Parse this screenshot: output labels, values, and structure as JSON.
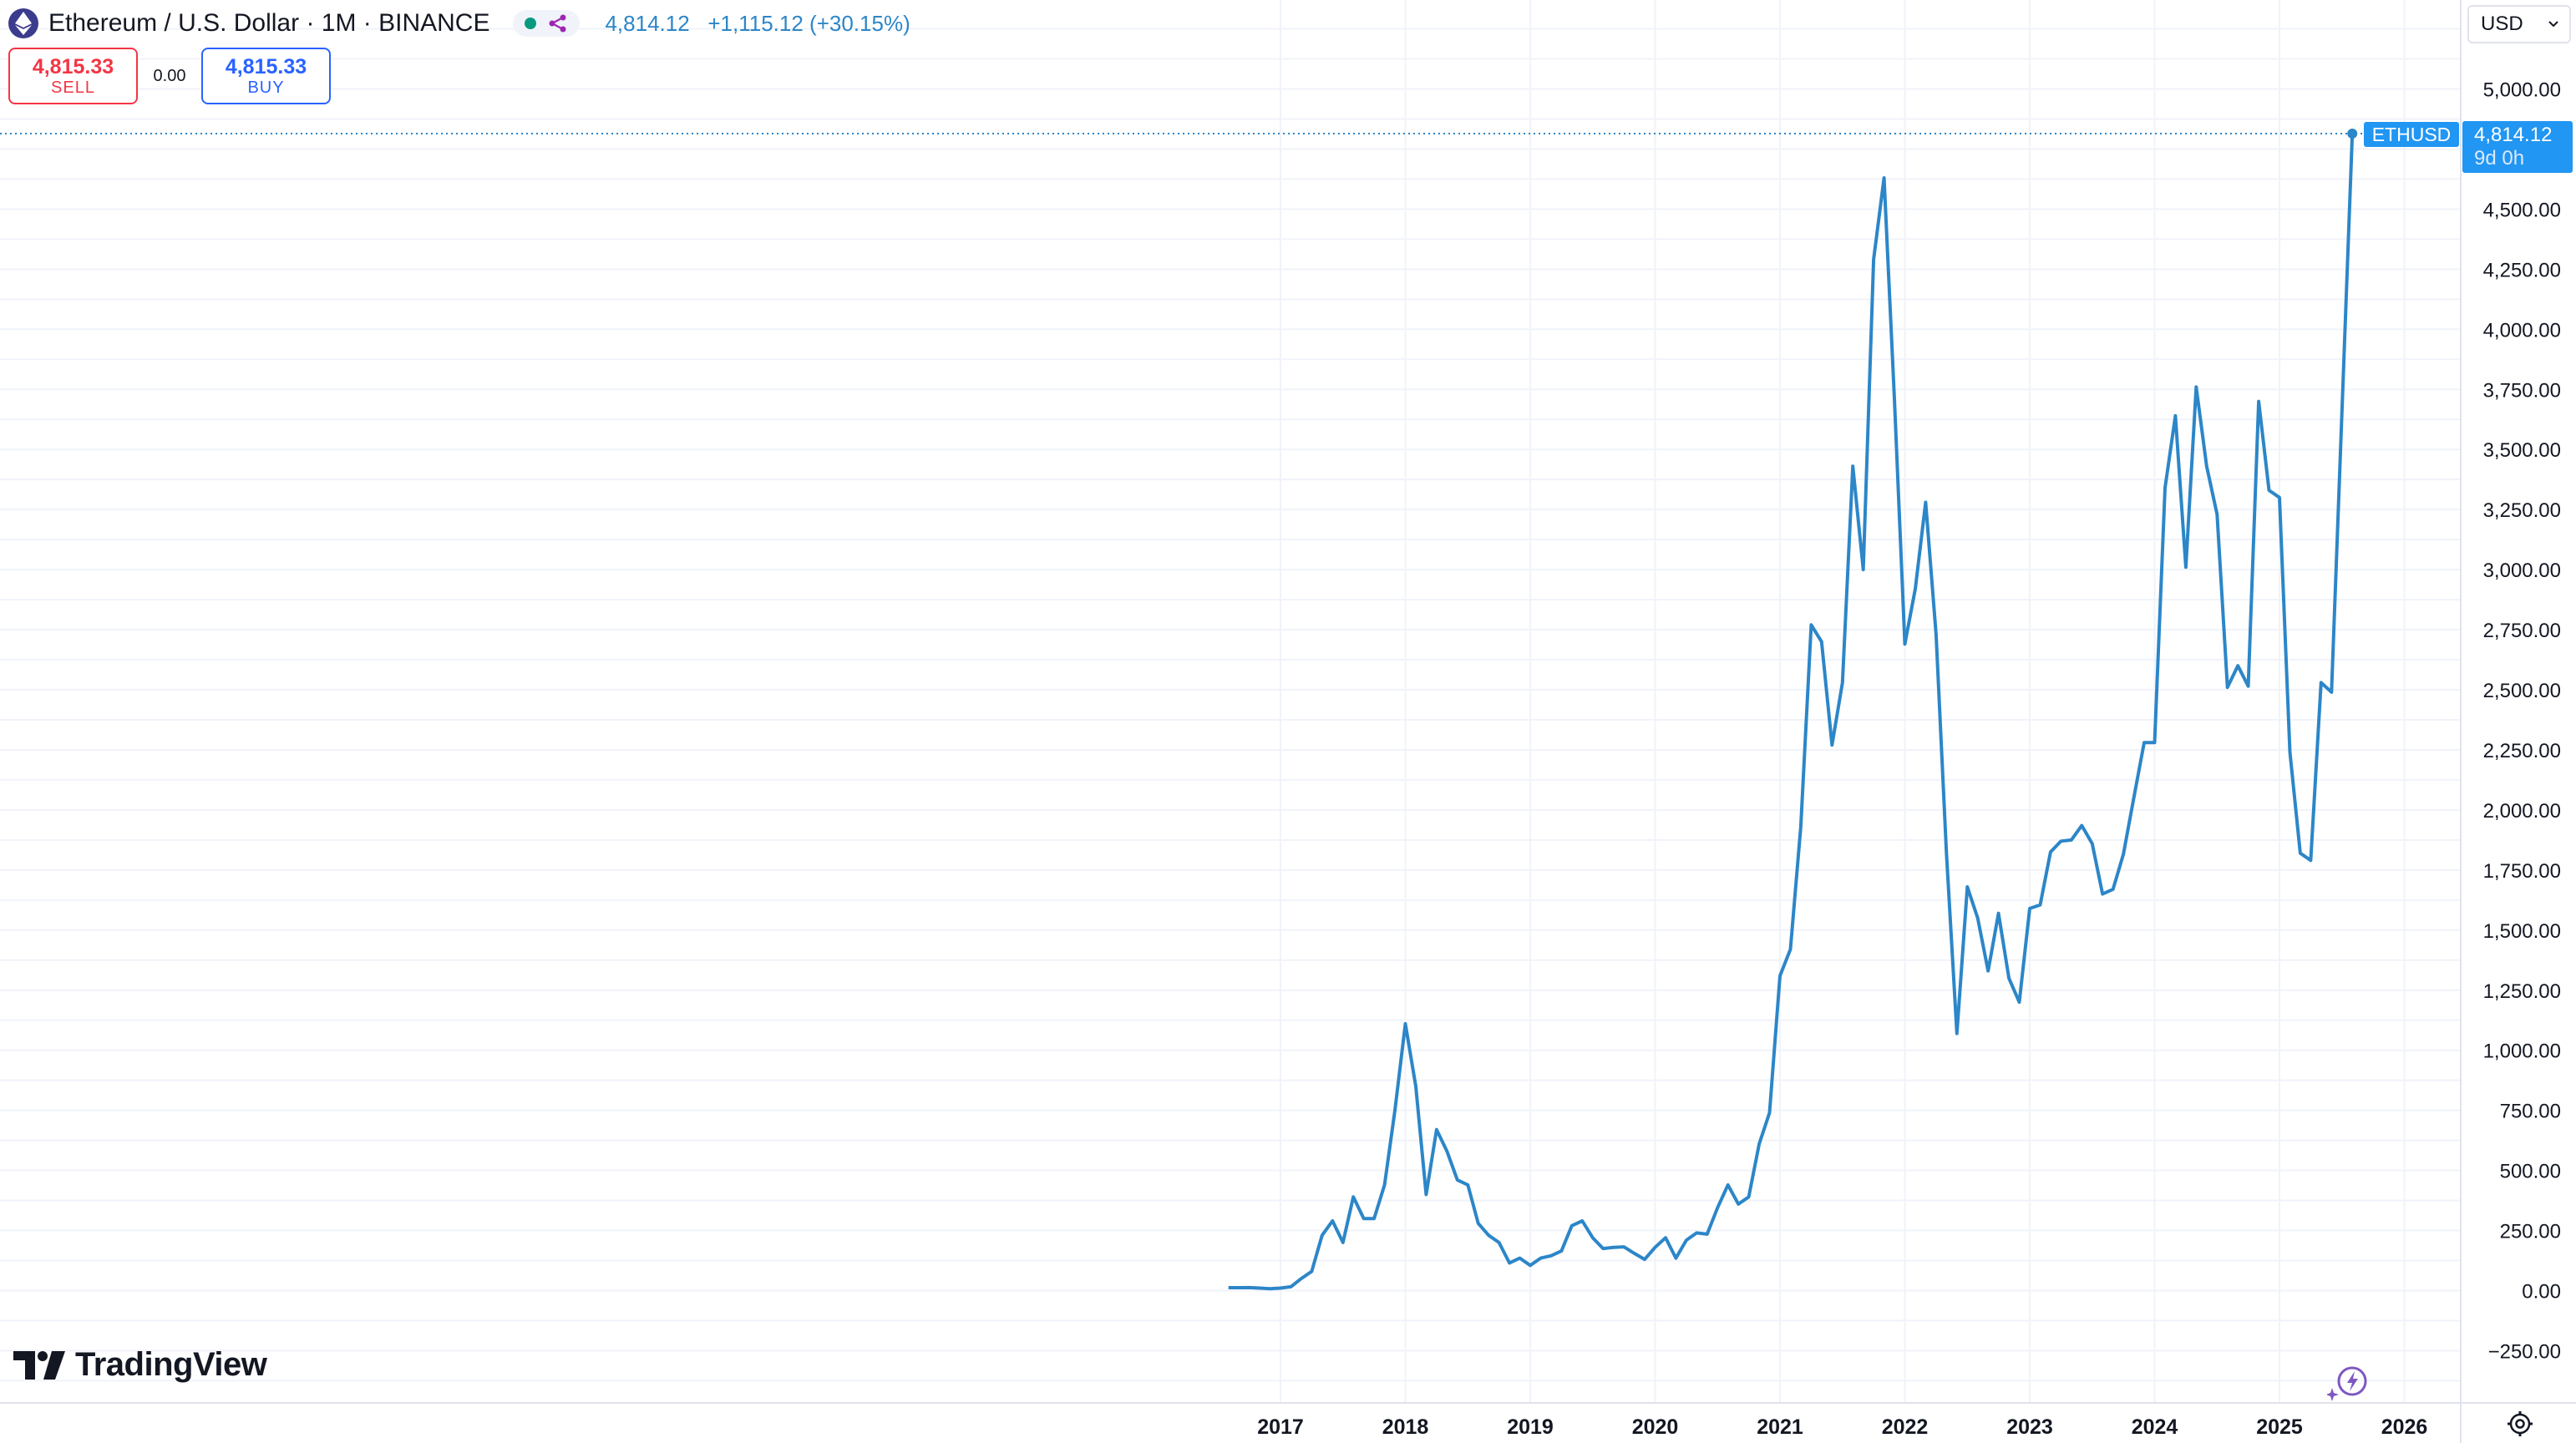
{
  "header": {
    "title": "Ethereum / U.S. Dollar · 1M · BINANCE",
    "last_price": "4,814.12",
    "change": "+1,115.12 (+30.15%)",
    "status_icon": "market-open-dot",
    "share_icon": "share-icon"
  },
  "trade": {
    "sell_price": "4,815.33",
    "sell_label": "SELL",
    "spread": "0.00",
    "buy_price": "4,815.33",
    "buy_label": "BUY"
  },
  "currency": {
    "selected": "USD"
  },
  "price_tag": {
    "symbol": "ETHUSD",
    "price": "4,814.12",
    "countdown": "9d 0h"
  },
  "brand": {
    "name": "TradingView"
  },
  "colors": {
    "line": "#2c86c8",
    "tag_bg": "#2196f3",
    "grid": "#f0f3fa",
    "sell": "#f23645",
    "buy": "#2962ff",
    "axis_text": "#131722"
  },
  "chart_data": {
    "type": "line",
    "series": [
      {
        "name": "ETHUSD",
        "values": [
          [
            2016.5833,
            12
          ],
          [
            2016.6667,
            12
          ],
          [
            2016.75,
            12.5
          ],
          [
            2016.8333,
            10.5
          ],
          [
            2016.9167,
            8
          ],
          [
            2017.0,
            10.5
          ],
          [
            2017.0833,
            16
          ],
          [
            2017.1667,
            50
          ],
          [
            2017.25,
            80
          ],
          [
            2017.3333,
            230
          ],
          [
            2017.4167,
            290
          ],
          [
            2017.5,
            200
          ],
          [
            2017.5833,
            390
          ],
          [
            2017.6667,
            300
          ],
          [
            2017.75,
            300
          ],
          [
            2017.8333,
            440
          ],
          [
            2017.9167,
            750
          ],
          [
            2018.0,
            1110
          ],
          [
            2018.0833,
            850
          ],
          [
            2018.1667,
            400
          ],
          [
            2018.25,
            670
          ],
          [
            2018.3333,
            580
          ],
          [
            2018.4167,
            460
          ],
          [
            2018.5,
            440
          ],
          [
            2018.5833,
            280
          ],
          [
            2018.6667,
            230
          ],
          [
            2018.75,
            200
          ],
          [
            2018.8333,
            115
          ],
          [
            2018.9167,
            135
          ],
          [
            2019.0,
            105
          ],
          [
            2019.0833,
            135
          ],
          [
            2019.1667,
            145
          ],
          [
            2019.25,
            165
          ],
          [
            2019.3333,
            270
          ],
          [
            2019.4167,
            290
          ],
          [
            2019.5,
            220
          ],
          [
            2019.5833,
            175
          ],
          [
            2019.6667,
            180
          ],
          [
            2019.75,
            182
          ],
          [
            2019.8333,
            155
          ],
          [
            2019.9167,
            130
          ],
          [
            2020.0,
            180
          ],
          [
            2020.0833,
            220
          ],
          [
            2020.1667,
            135
          ],
          [
            2020.25,
            210
          ],
          [
            2020.3333,
            240
          ],
          [
            2020.4167,
            235
          ],
          [
            2020.5,
            345
          ],
          [
            2020.5833,
            440
          ],
          [
            2020.6667,
            360
          ],
          [
            2020.75,
            390
          ],
          [
            2020.8333,
            610
          ],
          [
            2020.9167,
            740
          ],
          [
            2021.0,
            1310
          ],
          [
            2021.0833,
            1420
          ],
          [
            2021.1667,
            1930
          ],
          [
            2021.25,
            2770
          ],
          [
            2021.3333,
            2700
          ],
          [
            2021.4167,
            2270
          ],
          [
            2021.5,
            2530
          ],
          [
            2021.5833,
            3430
          ],
          [
            2021.6667,
            3000
          ],
          [
            2021.75,
            4290
          ],
          [
            2021.8333,
            4630
          ],
          [
            2021.9167,
            3710
          ],
          [
            2022.0,
            2690
          ],
          [
            2022.0833,
            2920
          ],
          [
            2022.1667,
            3280
          ],
          [
            2022.25,
            2730
          ],
          [
            2022.3333,
            1820
          ],
          [
            2022.4167,
            1070
          ],
          [
            2022.5,
            1680
          ],
          [
            2022.5833,
            1550
          ],
          [
            2022.6667,
            1330
          ],
          [
            2022.75,
            1570
          ],
          [
            2022.8333,
            1300
          ],
          [
            2022.9167,
            1200
          ],
          [
            2023.0,
            1590
          ],
          [
            2023.0833,
            1605
          ],
          [
            2023.1667,
            1825
          ],
          [
            2023.25,
            1870
          ],
          [
            2023.3333,
            1875
          ],
          [
            2023.4167,
            1935
          ],
          [
            2023.5,
            1860
          ],
          [
            2023.5833,
            1650
          ],
          [
            2023.6667,
            1670
          ],
          [
            2023.75,
            1815
          ],
          [
            2023.8333,
            2050
          ],
          [
            2023.9167,
            2280
          ],
          [
            2024.0,
            2280
          ],
          [
            2024.0833,
            3340
          ],
          [
            2024.1667,
            3640
          ],
          [
            2024.25,
            3010
          ],
          [
            2024.3333,
            3760
          ],
          [
            2024.4167,
            3430
          ],
          [
            2024.5,
            3230
          ],
          [
            2024.5833,
            2510
          ],
          [
            2024.6667,
            2600
          ],
          [
            2024.75,
            2515
          ],
          [
            2024.8333,
            3700
          ],
          [
            2024.9167,
            3330
          ],
          [
            2025.0,
            3300
          ],
          [
            2025.0833,
            2240
          ],
          [
            2025.1667,
            1820
          ],
          [
            2025.25,
            1790
          ],
          [
            2025.3333,
            2530
          ],
          [
            2025.4167,
            2490
          ],
          [
            2025.5833,
            4814.12
          ]
        ]
      }
    ],
    "x_ticks": [
      "2017",
      "2018",
      "2019",
      "2020",
      "2021",
      "2022",
      "2023",
      "2024",
      "2025",
      "2026"
    ],
    "y_ticks": [
      "5,000.00",
      "4,500.00",
      "4,250.00",
      "4,000.00",
      "3,750.00",
      "3,500.00",
      "3,250.00",
      "3,000.00",
      "2,750.00",
      "2,500.00",
      "2,250.00",
      "2,000.00",
      "1,750.00",
      "1,500.00",
      "1,250.00",
      "1,000.00",
      "750.00",
      "500.00",
      "250.00",
      "0.00",
      "−250.00"
    ],
    "last_value": 4814.12,
    "grid": true
  }
}
